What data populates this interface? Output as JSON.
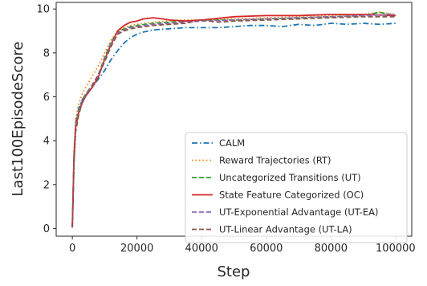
{
  "chart_data": {
    "type": "line",
    "xlabel": "Step",
    "ylabel": "Last100EpisodeScore",
    "xlim": [
      -5000,
      105000
    ],
    "ylim": [
      -0.35,
      10.3
    ],
    "xticks": [
      0,
      20000,
      40000,
      60000,
      80000,
      100000
    ],
    "xtick_labels": [
      "0",
      "20000",
      "40000",
      "60000",
      "80000",
      "100000"
    ],
    "yticks": [
      0,
      2,
      4,
      6,
      8,
      10
    ],
    "ytick_labels": [
      "0",
      "2",
      "4",
      "6",
      "8",
      "10"
    ],
    "grid": false,
    "legend_position": "lower-right",
    "series": [
      {
        "name": "CALM",
        "color": "#1f77b4",
        "dash": "dashdot",
        "x": [
          0,
          500,
          1000,
          2000,
          3000,
          4000,
          6000,
          8000,
          10000,
          12000,
          14000,
          16000,
          18000,
          20000,
          22000,
          25000,
          30000,
          35000,
          40000,
          45000,
          50000,
          55000,
          60000,
          65000,
          70000,
          75000,
          80000,
          85000,
          90000,
          95000,
          100000
        ],
        "values": [
          0.05,
          3.0,
          4.8,
          5.5,
          5.85,
          6.1,
          6.4,
          6.8,
          7.2,
          7.7,
          8.1,
          8.45,
          8.7,
          8.85,
          8.95,
          9.05,
          9.1,
          9.15,
          9.15,
          9.15,
          9.2,
          9.25,
          9.25,
          9.2,
          9.3,
          9.25,
          9.35,
          9.3,
          9.35,
          9.3,
          9.35
        ]
      },
      {
        "name": "Reward Trajectories (RT)",
        "color": "#ff7f0e",
        "dash": "dotted",
        "x": [
          0,
          500,
          1000,
          2000,
          3000,
          4000,
          6000,
          8000,
          10000,
          12000,
          14000,
          16000,
          18000,
          20000,
          25000,
          30000,
          35000,
          40000,
          50000,
          60000,
          70000,
          80000,
          90000,
          95000,
          100000
        ],
        "values": [
          0.05,
          3.5,
          5.0,
          5.7,
          6.1,
          6.4,
          6.9,
          7.4,
          8.0,
          8.6,
          9.0,
          9.15,
          9.25,
          9.3,
          9.4,
          9.45,
          9.5,
          9.5,
          9.55,
          9.6,
          9.65,
          9.7,
          9.75,
          9.85,
          9.75
        ]
      },
      {
        "name": "Uncategorized Transitions (UT)",
        "color": "#2ca02c",
        "dash": "dashed",
        "x": [
          0,
          500,
          1000,
          2000,
          3000,
          4000,
          6000,
          8000,
          10000,
          12000,
          14000,
          16000,
          18000,
          20000,
          25000,
          30000,
          35000,
          40000,
          50000,
          60000,
          70000,
          80000,
          90000,
          95000,
          100000
        ],
        "values": [
          0.05,
          3.2,
          4.7,
          5.4,
          5.8,
          6.1,
          6.5,
          7.0,
          7.8,
          8.5,
          8.95,
          9.1,
          9.2,
          9.25,
          9.35,
          9.4,
          9.45,
          9.5,
          9.5,
          9.55,
          9.6,
          9.65,
          9.7,
          9.85,
          9.7
        ]
      },
      {
        "name": "State Feature Categorized (OC)",
        "color": "#d62728",
        "dash": "solid",
        "x": [
          0,
          500,
          1000,
          2000,
          3000,
          4000,
          6000,
          8000,
          10000,
          12000,
          14000,
          16000,
          18000,
          20000,
          22000,
          25000,
          28000,
          30000,
          35000,
          40000,
          50000,
          60000,
          70000,
          80000,
          90000,
          100000
        ],
        "values": [
          0.05,
          3.3,
          4.6,
          5.3,
          5.7,
          6.0,
          6.4,
          6.9,
          7.7,
          8.4,
          9.0,
          9.25,
          9.4,
          9.45,
          9.55,
          9.6,
          9.55,
          9.5,
          9.45,
          9.5,
          9.65,
          9.7,
          9.7,
          9.75,
          9.75,
          9.7
        ]
      },
      {
        "name": "UT-Exponential Advantage (UT-EA)",
        "color": "#9467bd",
        "dash": "dashed",
        "x": [
          0,
          500,
          1000,
          2000,
          3000,
          4000,
          6000,
          8000,
          10000,
          12000,
          14000,
          16000,
          18000,
          20000,
          25000,
          30000,
          35000,
          40000,
          50000,
          60000,
          70000,
          80000,
          90000,
          100000
        ],
        "values": [
          0.05,
          3.1,
          4.5,
          5.3,
          5.8,
          6.05,
          6.5,
          7.0,
          7.7,
          8.4,
          8.9,
          9.05,
          9.15,
          9.2,
          9.3,
          9.35,
          9.4,
          9.45,
          9.5,
          9.55,
          9.6,
          9.65,
          9.7,
          9.75
        ]
      },
      {
        "name": "UT-Linear Advantage (UT-LA)",
        "color": "#8c564b",
        "dash": "dashed",
        "x": [
          0,
          500,
          1000,
          2000,
          3000,
          4000,
          6000,
          8000,
          10000,
          12000,
          14000,
          16000,
          18000,
          20000,
          25000,
          30000,
          35000,
          40000,
          45000,
          50000,
          60000,
          70000,
          80000,
          90000,
          100000
        ],
        "values": [
          0.05,
          3.0,
          4.4,
          5.2,
          5.7,
          6.0,
          6.45,
          6.95,
          7.6,
          8.3,
          8.85,
          9.0,
          9.1,
          9.15,
          9.25,
          9.3,
          9.35,
          9.5,
          9.4,
          9.45,
          9.5,
          9.55,
          9.6,
          9.65,
          9.65
        ]
      }
    ]
  }
}
